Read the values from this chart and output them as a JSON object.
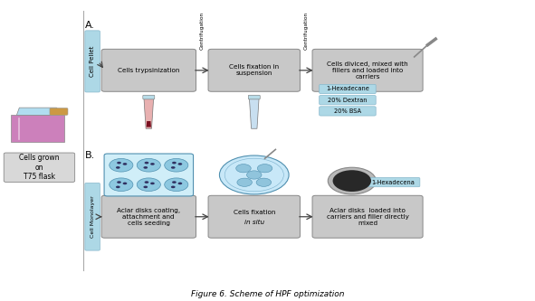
{
  "title": "Figure 6. Scheme of HPF optimization",
  "bg_color": "#ffffff",
  "box_gray": "#c8c8c8",
  "box_cyan": "#add8e6",
  "arrow_color": "#555555",
  "section_A": "A.",
  "section_B": "B.",
  "cell_pellet": "Cell Pellet",
  "cell_monolayer": "Cell Monolayer",
  "flask_label": "Cells grown\non\nT75 flask",
  "rowA_boxes": [
    "Cells trypsinization",
    "Cells fixation in\nsuspension",
    "Cells diviced, mixed with\nfillers and loaded into\ncarriers"
  ],
  "centrifugation": "Centrifugation",
  "rowB_box0": "Aclar disks coating,\nattachment and\ncells seeding",
  "rowB_box1_top": "Cells fixation",
  "rowB_box1_bot": "in situ",
  "rowB_box2": "Aclar disks  loaded into\ncarriers and filler directly\nmixed",
  "fillers": [
    "1-Hexadecane",
    "20% Dextran",
    "20% BSA"
  ],
  "filler_B": "1-Hexadecena"
}
